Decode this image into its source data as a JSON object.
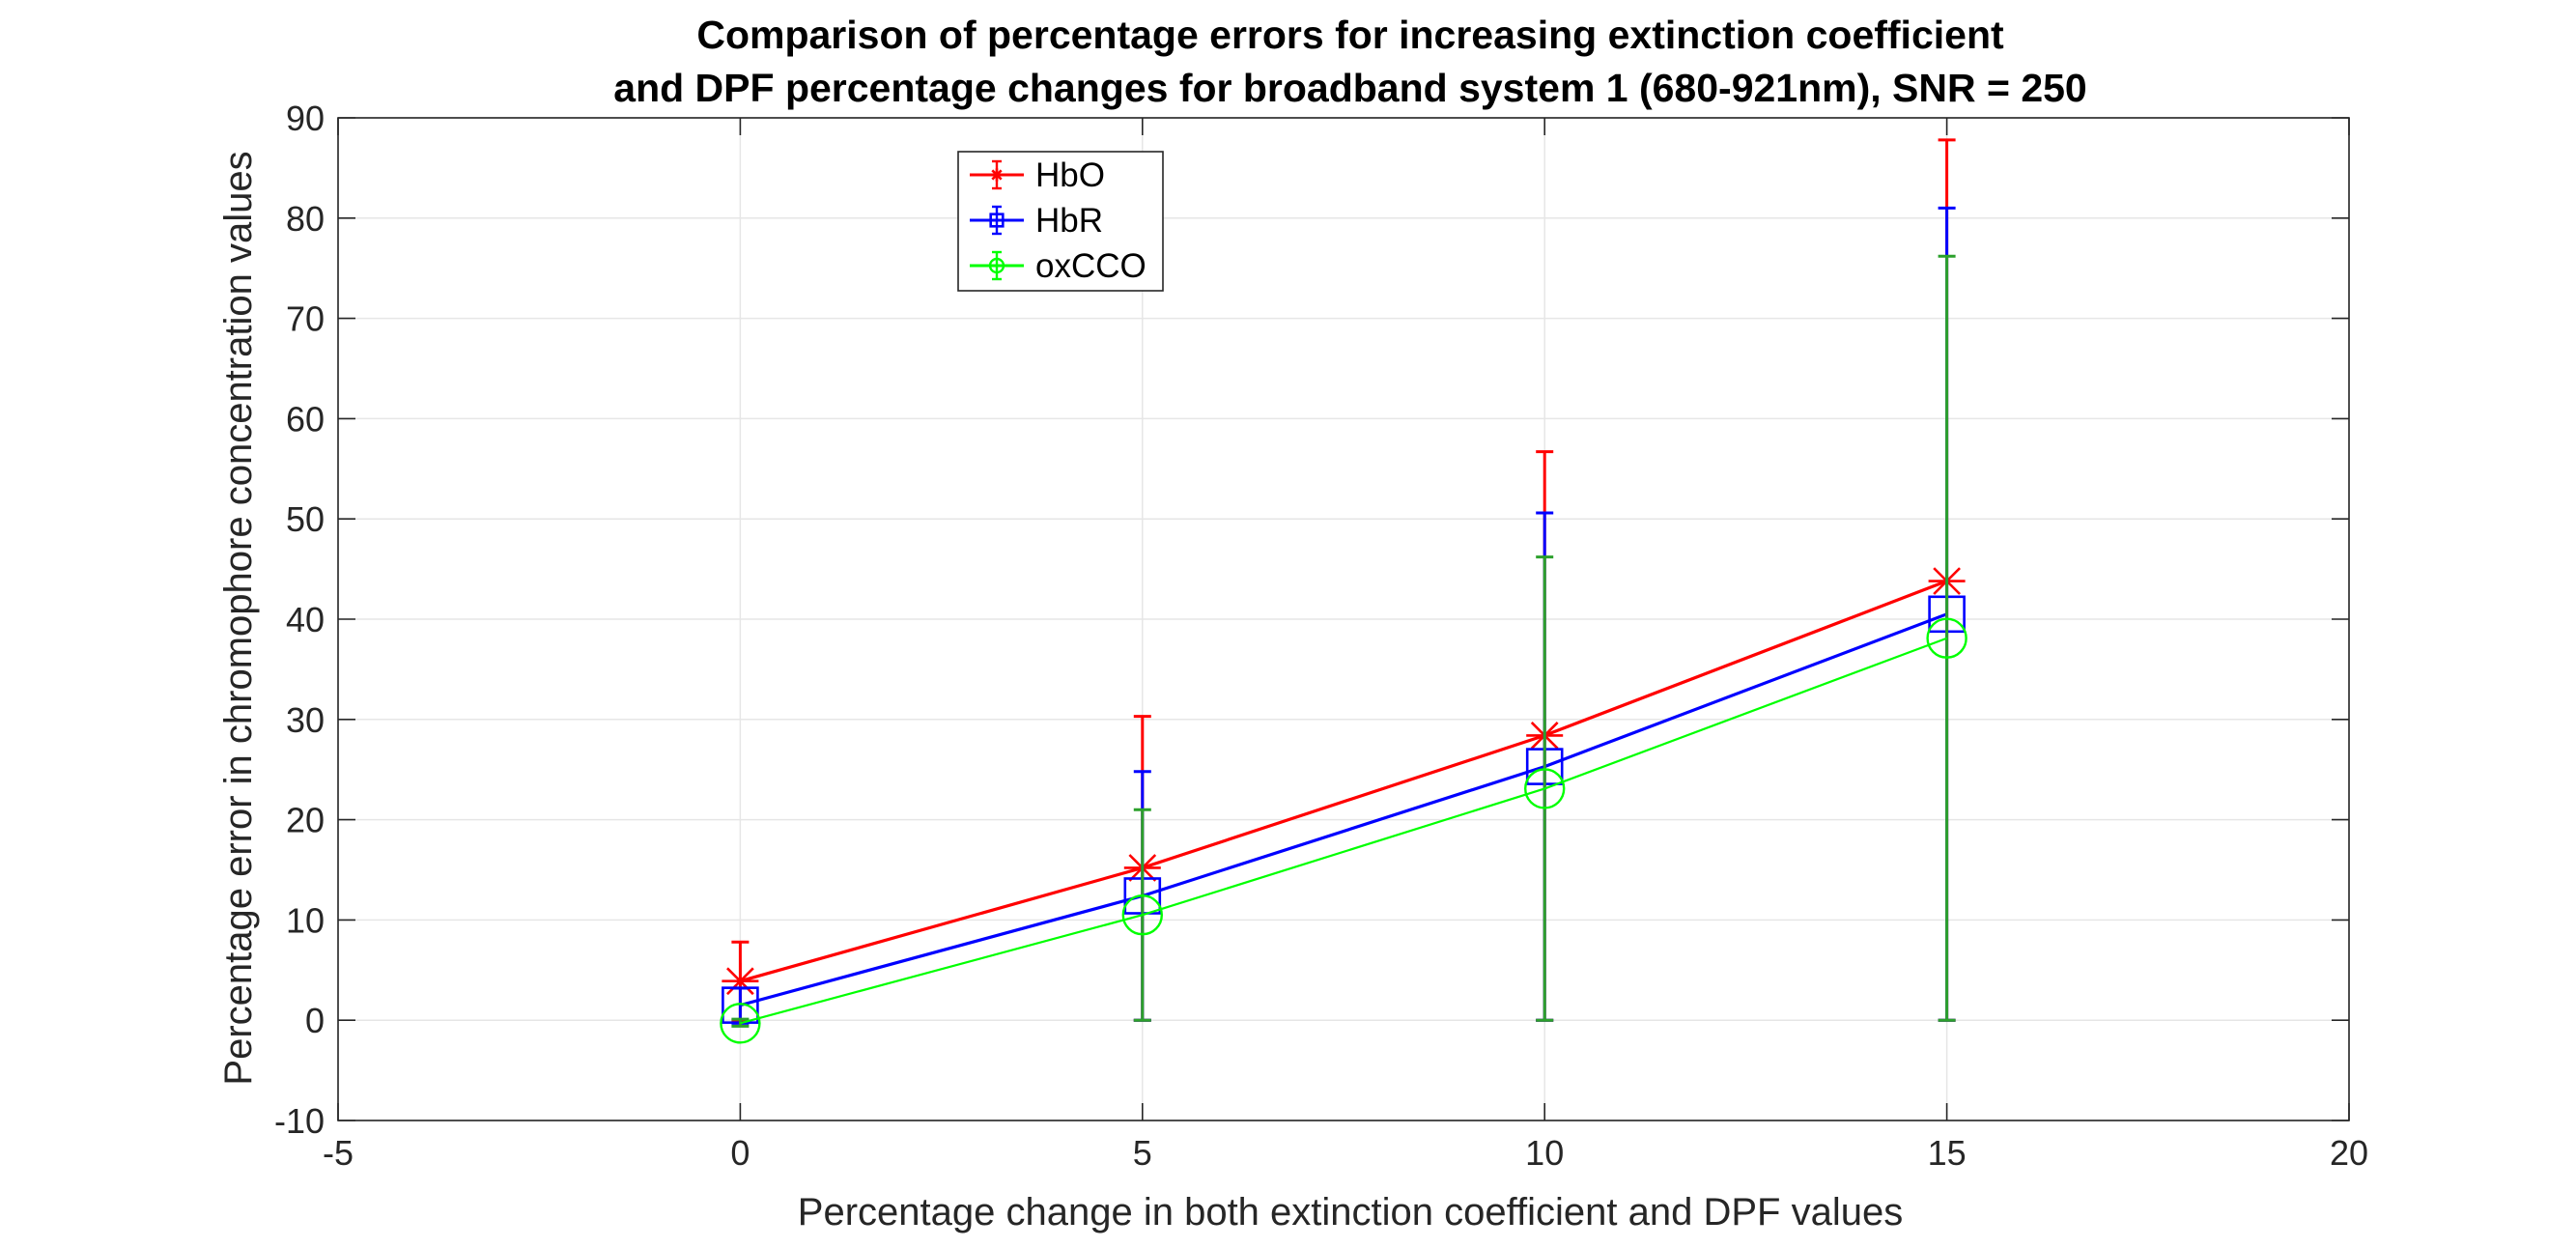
{
  "chart_data": {
    "type": "line",
    "title": [
      "Comparison of percentage errors for increasing extinction coefficient",
      "and DPF percentage changes for broadband system 1 (680-921nm), SNR = 250"
    ],
    "xlabel": "Percentage change in both extinction coefficient and DPF values",
    "ylabel": "Percentage error in chromophore concentration values",
    "xlim": [
      -5,
      20
    ],
    "ylim": [
      -10,
      90
    ],
    "xticks": [
      -5,
      0,
      5,
      10,
      15,
      20
    ],
    "yticks": [
      -10,
      0,
      10,
      20,
      30,
      40,
      50,
      60,
      70,
      80,
      90
    ],
    "grid": true,
    "legend_position": "top-left-inside",
    "x": [
      0,
      5,
      10,
      15
    ],
    "series": [
      {
        "name": "HbO",
        "color": "#ff0000",
        "marker": "asterisk",
        "values": [
          3.9,
          15.2,
          28.4,
          43.8
        ],
        "error_lower": [
          0,
          0,
          0,
          0
        ],
        "error_upper": [
          7.8,
          30.3,
          56.7,
          87.8
        ]
      },
      {
        "name": "HbR",
        "color": "#0000ff",
        "marker": "square",
        "values": [
          1.5,
          12.4,
          25.3,
          40.5
        ],
        "error_lower": [
          -0.3,
          0,
          0,
          0
        ],
        "error_upper": [
          3.2,
          24.8,
          50.6,
          81
        ]
      },
      {
        "name": "oxCCO",
        "color": "#00ff00",
        "marker": "circle",
        "values": [
          -0.3,
          10.5,
          23.1,
          38.1
        ],
        "error_lower": [
          -0.6,
          0,
          0,
          0
        ],
        "error_upper": [
          0.1,
          21,
          46.2,
          76.2
        ]
      }
    ]
  }
}
